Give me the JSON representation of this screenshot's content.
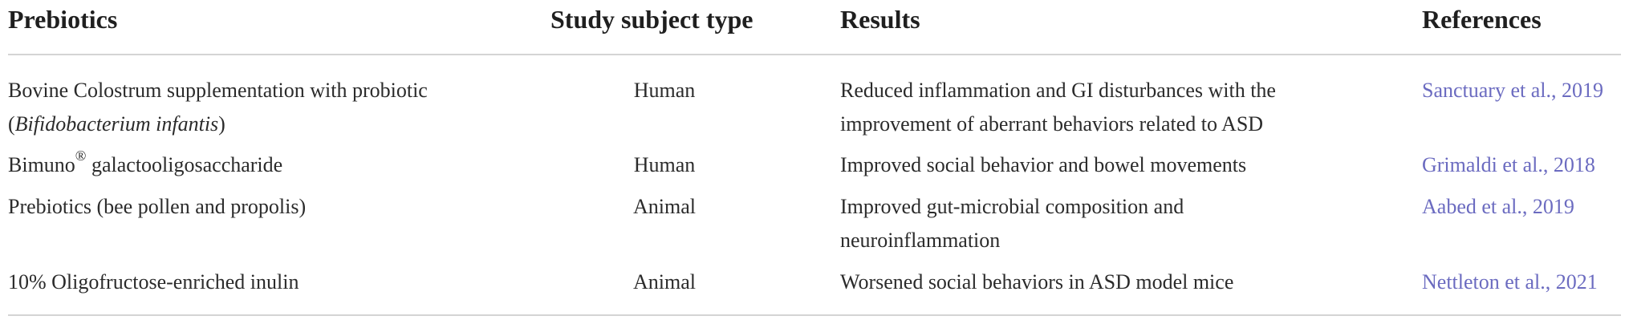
{
  "headers": {
    "prebiotics": "Prebiotics",
    "subject": "Study subject type",
    "results": "Results",
    "references": "References"
  },
  "rows": [
    {
      "prebiotic_line1": "Bovine Colostrum supplementation with probiotic",
      "prebiotic_line2_open": "(",
      "prebiotic_line2_italic": "Bifidobacterium infantis",
      "prebiotic_line2_close": ")",
      "subject": "Human",
      "result_line1": "Reduced inflammation and GI disturbances with the",
      "result_line2": "improvement of aberrant behaviors related to ASD",
      "reference": "Sanctuary et al., 2019"
    },
    {
      "prebiotic_main": "Bimuno",
      "prebiotic_sup": "®",
      "prebiotic_rest": " galactooligosaccharide",
      "subject": "Human",
      "result_line1": "Improved social behavior and bowel movements",
      "reference": "Grimaldi et al., 2018"
    },
    {
      "prebiotic_line1": "Prebiotics (bee pollen and propolis)",
      "subject": "Animal",
      "result_line1": "Improved gut-microbial composition and",
      "result_line2": "neuroinflammation",
      "reference": "Aabed et al., 2019"
    },
    {
      "prebiotic_line1": "10% Oligofructose-enriched inulin",
      "subject": "Animal",
      "result_line1": "Worsened social behaviors in ASD model mice",
      "reference": "Nettleton et al., 2021"
    }
  ]
}
